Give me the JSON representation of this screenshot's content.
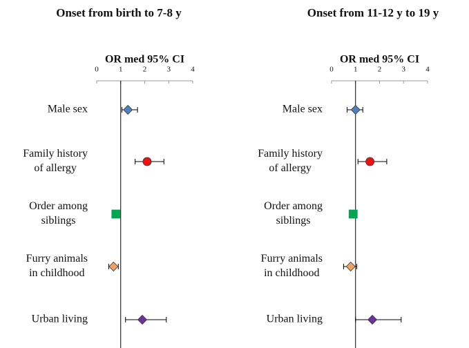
{
  "chart_data": [
    {
      "type": "forest",
      "title": "Onset from birth to 7-8 y",
      "xlabel": "OR med 95% CI",
      "xlim": [
        0,
        4
      ],
      "xticks": [
        0,
        1,
        2,
        3,
        4
      ],
      "reference": 1,
      "categories": [
        [
          "Male sex"
        ],
        [
          "Family history",
          "of allergy"
        ],
        [
          "Order among",
          "siblings"
        ],
        [
          "Furry animals",
          "in childhood"
        ],
        [
          "Urban living"
        ]
      ],
      "values": [
        1.3,
        2.1,
        0.8,
        0.7,
        1.9
      ],
      "lower": [
        1.05,
        1.6,
        0.75,
        0.5,
        1.2
      ],
      "upper": [
        1.7,
        2.8,
        0.9,
        0.9,
        2.9
      ],
      "markers": [
        "diamond",
        "circle",
        "square",
        "diamond",
        "diamond"
      ],
      "colors": [
        "#4f81bd",
        "#ee1111",
        "#00a650",
        "#f0a060",
        "#7030a0"
      ]
    },
    {
      "type": "forest",
      "title": "Onset from 11-12 y to 19 y",
      "xlabel": "OR med 95% CI",
      "xlim": [
        0,
        4
      ],
      "xticks": [
        0,
        1,
        2,
        3,
        4
      ],
      "reference": 1,
      "categories": [
        [
          "Male sex"
        ],
        [
          "Family history",
          "of allergy"
        ],
        [
          "Order among",
          "siblings"
        ],
        [
          "Furry animals",
          "in childhood"
        ],
        [
          "Urban living"
        ]
      ],
      "values": [
        1.0,
        1.6,
        0.9,
        0.8,
        1.7
      ],
      "lower": [
        0.65,
        1.1,
        0.85,
        0.5,
        1.0
      ],
      "upper": [
        1.3,
        2.3,
        1.05,
        1.05,
        2.9
      ],
      "markers": [
        "diamond",
        "circle",
        "square",
        "diamond",
        "diamond"
      ],
      "colors": [
        "#4f81bd",
        "#ee1111",
        "#00a650",
        "#f0a060",
        "#7030a0"
      ]
    }
  ]
}
